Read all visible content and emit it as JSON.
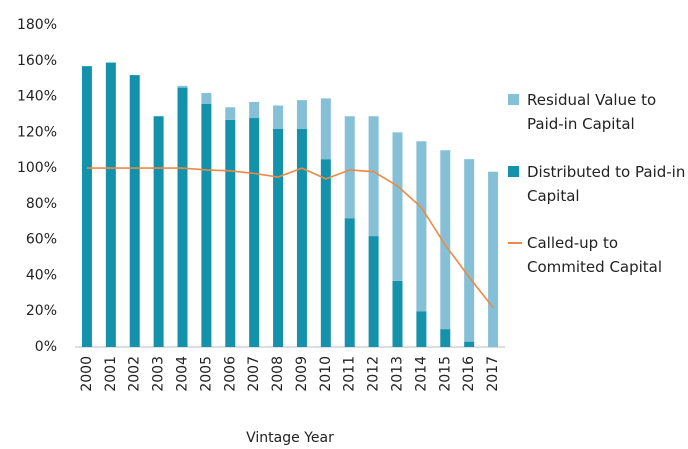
{
  "chart_data": {
    "type": "bar",
    "x_label": "Vintage Year",
    "categories": [
      "2000",
      "2001",
      "2002",
      "2003",
      "2004",
      "2005",
      "2006",
      "2007",
      "2008",
      "2009",
      "2010",
      "2011",
      "2012",
      "2013",
      "2014",
      "2015",
      "2016",
      "2017"
    ],
    "stacked": true,
    "series": [
      {
        "name": "Residual Value to Paid-in Capital",
        "type": "bar",
        "color": "#86c0d6",
        "values": [
          0,
          0,
          0,
          0,
          1,
          6,
          7,
          9,
          13,
          16,
          34,
          57,
          67,
          83,
          95,
          100,
          102,
          98
        ]
      },
      {
        "name": "Distributed to Paid-in Capital",
        "type": "bar",
        "color": "#1492ab",
        "values": [
          157,
          159,
          152,
          129,
          145,
          136,
          127,
          128,
          122,
          122,
          105,
          72,
          62,
          37,
          20,
          10,
          3,
          0
        ]
      },
      {
        "name": "Called-up to Commited Capital",
        "type": "line",
        "color": "#ea8a45",
        "values": [
          100,
          100,
          100,
          100,
          100,
          99,
          98.5,
          97,
          95,
          100,
          94,
          99,
          98,
          90,
          78,
          57,
          39,
          22
        ]
      }
    ],
    "ylim": [
      0,
      180
    ],
    "yticks": [
      {
        "value": 0,
        "label": "0%"
      },
      {
        "value": 20,
        "label": "20%"
      },
      {
        "value": 40,
        "label": "40%"
      },
      {
        "value": 60,
        "label": "60%"
      },
      {
        "value": 80,
        "label": "80%"
      },
      {
        "value": 100,
        "label": "100%"
      },
      {
        "value": 120,
        "label": "120%"
      },
      {
        "value": 140,
        "label": "140%"
      },
      {
        "value": 160,
        "label": "160%"
      },
      {
        "value": 180,
        "label": "180%"
      }
    ],
    "grid": false,
    "legend": "right"
  }
}
